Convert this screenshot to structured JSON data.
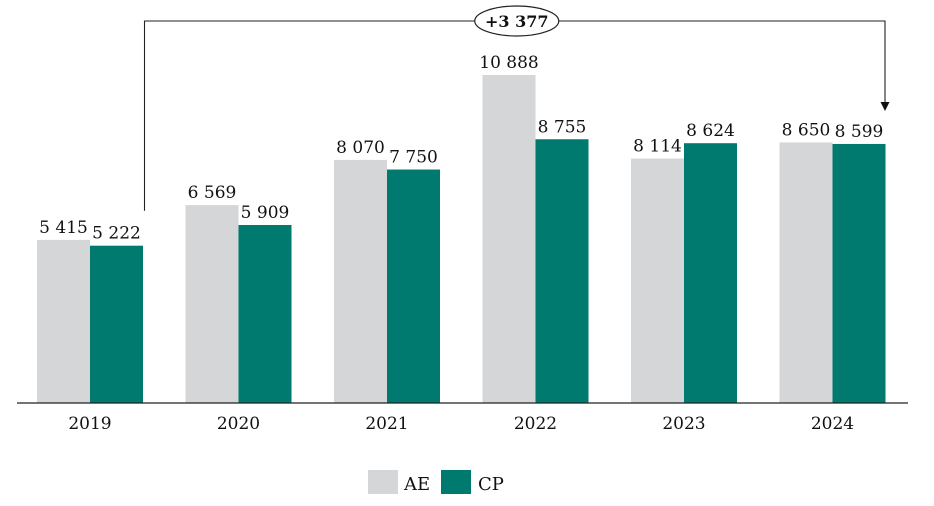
{
  "chart_data": {
    "type": "bar",
    "title": "",
    "xlabel": "",
    "ylabel": "",
    "categories": [
      "2019",
      "2020",
      "2021",
      "2022",
      "2023",
      "2024"
    ],
    "series": [
      {
        "name": "AE",
        "values": [
          5415,
          6569,
          8070,
          10888,
          8114,
          8650
        ],
        "labels": [
          "5 415",
          "6 569",
          "8 070",
          "10 888",
          "8 114",
          "8 650"
        ]
      },
      {
        "name": "CP",
        "values": [
          5222,
          5909,
          7750,
          8755,
          8624,
          8599
        ],
        "labels": [
          "5 222",
          "5 909",
          "7 750",
          "8 755",
          "8 624",
          "8 599"
        ]
      }
    ],
    "ylim": [
      0,
      10888
    ],
    "grid": false,
    "legend": "bottom-center",
    "colors": {
      "AE": "#d5d6d8",
      "CP": "#007a6e"
    },
    "annotation": {
      "text": "+3 377",
      "from": "2019-CP",
      "to": "2024-CP"
    }
  }
}
